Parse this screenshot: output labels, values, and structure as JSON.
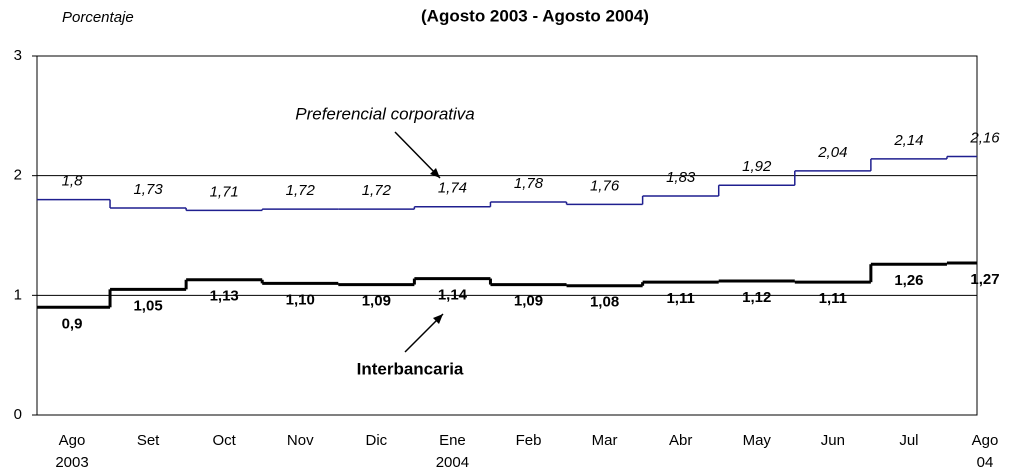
{
  "chart_data": {
    "type": "step",
    "title": "(Agosto 2003 - Agosto 2004)",
    "y_label": "Porcentaje",
    "categories": [
      "Ago 2003",
      "Set",
      "Oct",
      "Nov",
      "Dic",
      "Ene 2004",
      "Feb",
      "Mar",
      "Abr",
      "May",
      "Jun",
      "Jul",
      "Ago 04"
    ],
    "series": [
      {
        "name": "Preferencial corporativa",
        "color": "#1f1f8f",
        "values": [
          1.8,
          1.73,
          1.71,
          1.72,
          1.72,
          1.74,
          1.78,
          1.76,
          1.83,
          1.92,
          2.04,
          2.14,
          2.16
        ],
        "value_labels": [
          "1,8",
          "1,73",
          "1,71",
          "1,72",
          "1,72",
          "1,74",
          "1,78",
          "1,76",
          "1,83",
          "1,92",
          "2,04",
          "2,14",
          "2,16"
        ]
      },
      {
        "name": "Interbancaria",
        "color": "#000000",
        "values": [
          0.9,
          1.05,
          1.13,
          1.1,
          1.09,
          1.14,
          1.09,
          1.08,
          1.11,
          1.12,
          1.11,
          1.26,
          1.27
        ],
        "value_labels": [
          "0,9",
          "1,05",
          "1,13",
          "1,10",
          "1,09",
          "1,14",
          "1,09",
          "1,08",
          "1,11",
          "1,12",
          "1,11",
          "1,26",
          "1,27"
        ]
      }
    ],
    "ylim": [
      0,
      3
    ],
    "yticks": [
      0,
      1,
      2,
      3
    ],
    "grid": true
  }
}
